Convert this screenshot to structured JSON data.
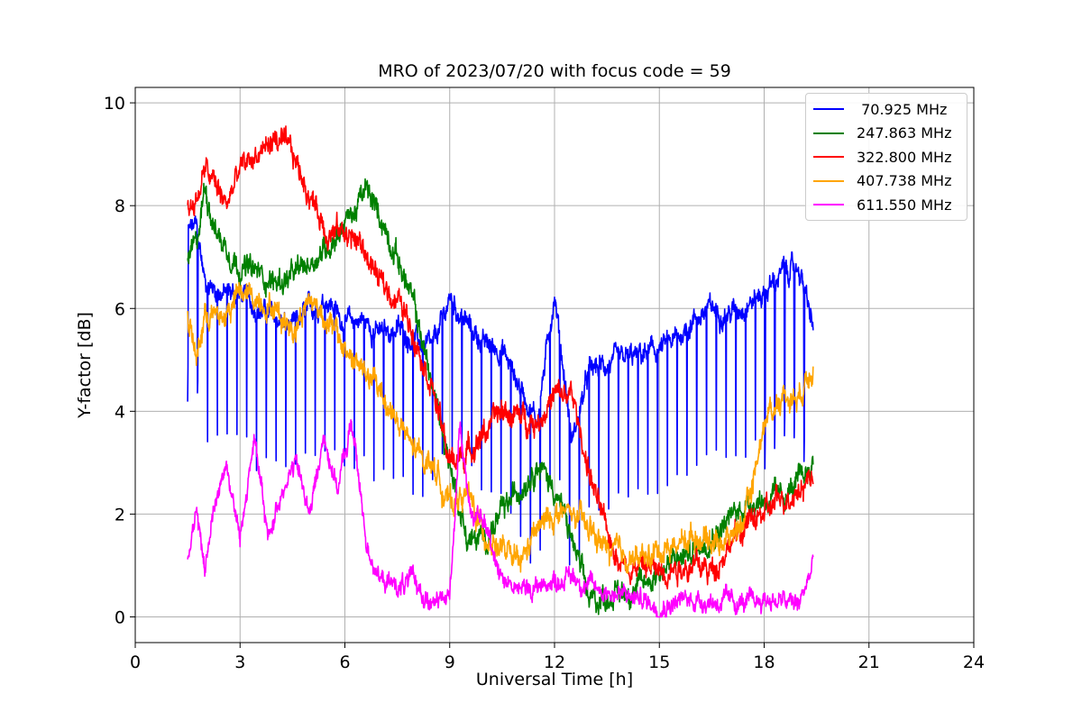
{
  "chart_data": {
    "type": "line",
    "title": "MRO of 2023/07/20 with focus code = 59",
    "xlabel": "Universal Time [h]",
    "ylabel": "Y-factor [dB]",
    "xlim": [
      0,
      24
    ],
    "ylim": [
      -0.5,
      10.3
    ],
    "xticks": [
      0,
      3,
      6,
      9,
      12,
      15,
      18,
      21,
      24
    ],
    "yticks": [
      0,
      2,
      4,
      6,
      8,
      10
    ],
    "grid": true,
    "legend_position": "top-right",
    "series": [
      {
        "name": " 70.925 MHz",
        "color": "#0000ff",
        "x": [
          1.5,
          1.75,
          2.0,
          2.5,
          3.0,
          3.5,
          4.0,
          4.5,
          5.0,
          5.5,
          6.0,
          6.5,
          7.0,
          7.5,
          8.0,
          8.5,
          9.0,
          9.5,
          10.0,
          10.5,
          11.0,
          11.5,
          12.0,
          12.5,
          13.0,
          13.5,
          14.0,
          14.5,
          15.0,
          15.5,
          16.0,
          16.5,
          17.0,
          17.5,
          18.0,
          18.5,
          19.0,
          19.4
        ],
        "y": [
          7.5,
          7.6,
          6.5,
          6.3,
          6.3,
          6.0,
          5.8,
          5.6,
          6.0,
          6.2,
          5.7,
          5.8,
          5.5,
          5.6,
          5.4,
          5.2,
          6.2,
          5.7,
          5.3,
          5.2,
          4.5,
          3.8,
          6.3,
          3.4,
          4.8,
          4.9,
          5.0,
          5.1,
          5.2,
          5.4,
          5.8,
          6.0,
          5.9,
          6.1,
          6.3,
          6.7,
          6.8,
          5.6
        ],
        "dip_period_h": 0.28,
        "dip_depth_db": 3.3
      },
      {
        "name": "247.863 MHz",
        "color": "#008000",
        "x": [
          1.5,
          1.75,
          2.0,
          2.3,
          2.6,
          3.0,
          3.5,
          4.0,
          4.5,
          5.0,
          5.5,
          6.0,
          6.3,
          6.6,
          7.0,
          7.5,
          8.0,
          8.5,
          9.0,
          9.5,
          10.0,
          10.5,
          11.0,
          11.5,
          12.0,
          12.5,
          13.0,
          13.5,
          14.0,
          14.5,
          15.0,
          15.5,
          16.0,
          16.5,
          17.0,
          17.5,
          18.0,
          18.5,
          19.0,
          19.4
        ],
        "y": [
          7.0,
          7.2,
          8.4,
          7.5,
          7.2,
          6.8,
          6.7,
          6.5,
          6.6,
          6.9,
          7.2,
          7.7,
          7.9,
          8.3,
          7.8,
          7.0,
          6.0,
          4.5,
          3.0,
          1.5,
          1.5,
          2.0,
          2.5,
          3.0,
          2.5,
          1.5,
          0.3,
          0.4,
          0.5,
          0.6,
          0.9,
          1.1,
          1.3,
          1.6,
          1.9,
          2.2,
          2.3,
          2.3,
          2.6,
          3.0
        ]
      },
      {
        "name": "322.800 MHz",
        "color": "#ff0000",
        "x": [
          1.5,
          1.75,
          2.0,
          2.3,
          2.6,
          3.0,
          3.5,
          4.0,
          4.5,
          5.0,
          5.5,
          6.0,
          6.5,
          7.0,
          7.5,
          8.0,
          8.5,
          9.0,
          9.5,
          10.0,
          10.5,
          11.0,
          11.5,
          12.0,
          12.5,
          13.0,
          13.5,
          14.0,
          14.5,
          15.0,
          15.5,
          16.0,
          16.5,
          17.0,
          17.5,
          18.0,
          18.5,
          19.0,
          19.4
        ],
        "y": [
          8.0,
          8.1,
          8.7,
          8.4,
          8.0,
          8.7,
          9.0,
          9.3,
          9.0,
          8.2,
          7.5,
          7.5,
          7.2,
          6.5,
          6.2,
          5.5,
          4.5,
          3.0,
          3.2,
          3.6,
          4.0,
          3.9,
          3.8,
          4.3,
          4.3,
          2.8,
          1.6,
          1.0,
          1.0,
          0.9,
          1.0,
          1.0,
          0.9,
          1.4,
          1.8,
          2.0,
          2.3,
          2.5,
          2.8
        ]
      },
      {
        "name": "407.738 MHz",
        "color": "#ffa500",
        "x": [
          1.5,
          1.75,
          2.0,
          2.5,
          3.0,
          3.5,
          4.0,
          4.5,
          5.0,
          5.5,
          6.0,
          6.5,
          7.0,
          7.5,
          8.0,
          8.5,
          9.0,
          9.5,
          10.0,
          10.5,
          11.0,
          11.5,
          12.0,
          12.5,
          13.0,
          13.5,
          14.0,
          14.5,
          15.0,
          15.5,
          16.0,
          16.5,
          17.0,
          17.5,
          18.0,
          18.5,
          19.0,
          19.4
        ],
        "y": [
          5.8,
          5.0,
          5.9,
          5.8,
          6.3,
          6.2,
          6.0,
          5.6,
          6.2,
          5.8,
          5.2,
          4.8,
          4.4,
          3.8,
          3.2,
          3.0,
          2.2,
          2.4,
          1.6,
          1.3,
          1.0,
          1.7,
          2.0,
          2.0,
          1.7,
          1.3,
          1.2,
          1.1,
          1.3,
          1.4,
          1.6,
          1.5,
          1.5,
          2.0,
          3.8,
          4.3,
          4.3,
          5.0
        ]
      },
      {
        "name": "611.550 MHz",
        "color": "#ff00ff",
        "x": [
          1.5,
          1.75,
          2.0,
          2.3,
          2.6,
          3.0,
          3.4,
          3.8,
          4.2,
          4.6,
          5.0,
          5.4,
          5.8,
          6.2,
          6.6,
          7.0,
          7.5,
          8.0,
          8.5,
          9.0,
          9.3,
          9.6,
          10.0,
          10.5,
          11.0,
          11.5,
          12.0,
          12.5,
          13.0,
          13.5,
          14.0,
          14.5,
          15.0,
          15.5,
          16.0,
          16.5,
          17.0,
          17.5,
          18.0,
          18.5,
          19.0,
          19.4
        ],
        "y": [
          1.2,
          1.9,
          1.0,
          2.3,
          3.0,
          1.5,
          3.5,
          1.5,
          2.5,
          3.0,
          2.0,
          3.5,
          2.5,
          3.8,
          1.5,
          0.7,
          0.6,
          0.7,
          0.2,
          0.4,
          3.8,
          2.0,
          1.8,
          0.8,
          0.5,
          0.6,
          0.7,
          0.8,
          0.6,
          0.5,
          0.4,
          0.35,
          0.2,
          0.3,
          0.35,
          0.3,
          0.3,
          0.25,
          0.35,
          0.3,
          0.25,
          1.0
        ]
      }
    ]
  }
}
